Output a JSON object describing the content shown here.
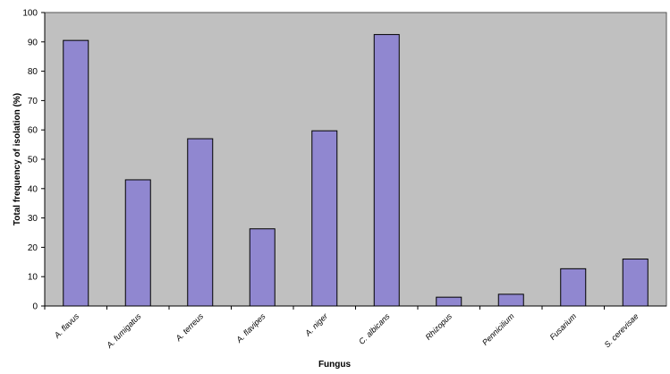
{
  "chart_data": {
    "type": "bar",
    "x_label": "Fungus",
    "y_label": "Total frequency of isolation (%)",
    "categories": [
      "A. flavus",
      "A. fumigatus",
      "A. terreus",
      "A. flavipes",
      "A. niger",
      "C. albicans",
      "Rhizopus",
      "Pennicilium",
      "Fusarium",
      "S. cerevisae"
    ],
    "values": [
      90.5,
      43,
      57,
      26.3,
      59.7,
      92.5,
      3,
      4,
      12.7,
      16
    ],
    "color": "#9087d0",
    "plot_background": "#c0c0c0",
    "ylim": [
      0,
      100
    ],
    "yticks": [
      0,
      10,
      20,
      30,
      40,
      50,
      60,
      70,
      80,
      90,
      100
    ],
    "grid": false
  }
}
